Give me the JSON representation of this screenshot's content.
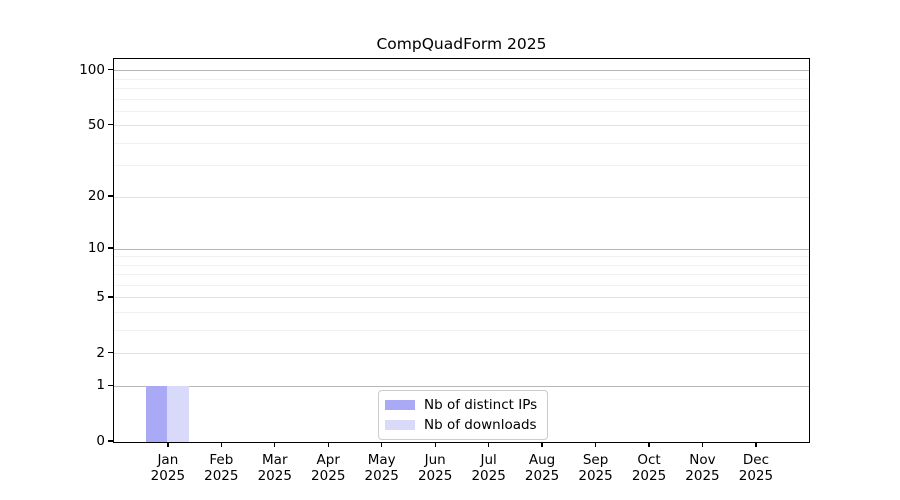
{
  "figure": {
    "background_color": "#ffffff",
    "text_color": "#000000"
  },
  "chart_data": {
    "type": "bar",
    "title": "CompQuadForm 2025",
    "categories": [
      "Jan 2025",
      "Feb 2025",
      "Mar 2025",
      "Apr 2025",
      "May 2025",
      "Jun 2025",
      "Jul 2025",
      "Aug 2025",
      "Sep 2025",
      "Oct 2025",
      "Nov 2025",
      "Dec 2025"
    ],
    "x_tick_labels": [
      {
        "month": "Jan",
        "year": "2025"
      },
      {
        "month": "Feb",
        "year": "2025"
      },
      {
        "month": "Mar",
        "year": "2025"
      },
      {
        "month": "Apr",
        "year": "2025"
      },
      {
        "month": "May",
        "year": "2025"
      },
      {
        "month": "Jun",
        "year": "2025"
      },
      {
        "month": "Jul",
        "year": "2025"
      },
      {
        "month": "Aug",
        "year": "2025"
      },
      {
        "month": "Sep",
        "year": "2025"
      },
      {
        "month": "Oct",
        "year": "2025"
      },
      {
        "month": "Nov",
        "year": "2025"
      },
      {
        "month": "Dec",
        "year": "2025"
      }
    ],
    "series": [
      {
        "name": "Nb of distinct IPs",
        "key": "distinct-ips",
        "color": "#a9a9f5",
        "values": [
          1,
          0,
          0,
          0,
          0,
          0,
          0,
          0,
          0,
          0,
          0,
          0
        ]
      },
      {
        "name": "Nb of downloads",
        "key": "downloads",
        "color": "#d9d9f9",
        "values": [
          1,
          0,
          0,
          0,
          0,
          0,
          0,
          0,
          0,
          0,
          0,
          0
        ]
      }
    ],
    "y_axis": {
      "scale": "log1p",
      "major_ticks": [
        0,
        1,
        2,
        5,
        10,
        20,
        50,
        100
      ],
      "decade_ticks": [
        1,
        10,
        100
      ],
      "minor_ticks": [
        3,
        4,
        6,
        7,
        8,
        9,
        30,
        40,
        60,
        70,
        80,
        90
      ],
      "ylim": [
        0,
        116
      ]
    },
    "grid": {
      "orientation": "horizontal",
      "decade_color": "#b6b6b6",
      "major_color": "#e2e2e2",
      "minor_color": "#f2f2f2"
    },
    "legend": {
      "position": "bottom-center",
      "entries": [
        "Nb of distinct IPs",
        "Nb of downloads"
      ]
    }
  }
}
